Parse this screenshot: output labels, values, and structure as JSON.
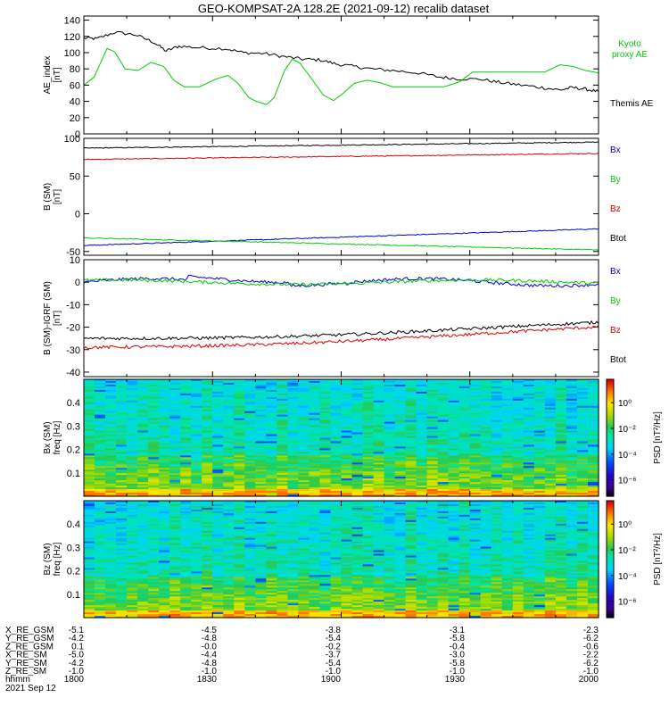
{
  "title": "GEO-KOMPSAT-2A 128.2E (2021-09-12) recalib dataset",
  "x_ticks": [
    "1800",
    "1830",
    "1900",
    "1930",
    "2000"
  ],
  "colors": {
    "black": "#000000",
    "green": "#00cc00",
    "red": "#dd0000",
    "blue": "#0000cc"
  },
  "chart_data": [
    {
      "type": "line",
      "name": "ae_panel",
      "ylabel": "AE_index",
      "yunit": "[nT]",
      "ylim": [
        0,
        145
      ],
      "yticks": [
        0,
        20,
        40,
        60,
        80,
        100,
        120,
        140
      ],
      "x": [
        18.0,
        18.25,
        18.5,
        18.75,
        19.0,
        19.25,
        19.5,
        19.75,
        20.0
      ],
      "series": [
        {
          "name": "Themis AE",
          "color": "black",
          "points": [
            [
              18.0,
              118
            ],
            [
              18.05,
              117
            ],
            [
              18.12,
              125
            ],
            [
              18.2,
              122
            ],
            [
              18.27,
              113
            ],
            [
              18.32,
              102
            ],
            [
              18.37,
              108
            ],
            [
              18.45,
              106
            ],
            [
              18.55,
              105
            ],
            [
              18.62,
              100
            ],
            [
              18.7,
              99
            ],
            [
              18.78,
              95
            ],
            [
              18.85,
              92
            ],
            [
              18.92,
              91
            ],
            [
              18.98,
              86
            ],
            [
              19.05,
              83
            ],
            [
              19.12,
              80
            ],
            [
              19.2,
              78
            ],
            [
              19.3,
              75
            ],
            [
              19.38,
              70
            ],
            [
              19.45,
              68
            ],
            [
              19.55,
              67
            ],
            [
              19.62,
              63
            ],
            [
              19.7,
              60
            ],
            [
              19.78,
              57
            ],
            [
              19.85,
              54
            ],
            [
              19.9,
              57
            ],
            [
              19.95,
              55
            ],
            [
              20.0,
              52
            ]
          ]
        },
        {
          "name": "Kyoto proxy AE",
          "color": "green",
          "points": [
            [
              18.0,
              60
            ],
            [
              18.04,
              70
            ],
            [
              18.09,
              105
            ],
            [
              18.12,
              101
            ],
            [
              18.16,
              80
            ],
            [
              18.21,
              78
            ],
            [
              18.26,
              88
            ],
            [
              18.31,
              83
            ],
            [
              18.35,
              66
            ],
            [
              18.39,
              58
            ],
            [
              18.45,
              58
            ],
            [
              18.51,
              67
            ],
            [
              18.56,
              72
            ],
            [
              18.6,
              62
            ],
            [
              18.64,
              45
            ],
            [
              18.67,
              40
            ],
            [
              18.71,
              36
            ],
            [
              18.74,
              45
            ],
            [
              18.78,
              78
            ],
            [
              18.81,
              92
            ],
            [
              18.84,
              87
            ],
            [
              18.88,
              70
            ],
            [
              18.93,
              48
            ],
            [
              18.97,
              41
            ],
            [
              19.0,
              48
            ],
            [
              19.05,
              62
            ],
            [
              19.1,
              66
            ],
            [
              19.15,
              63
            ],
            [
              19.2,
              58
            ],
            [
              19.3,
              58
            ],
            [
              19.4,
              58
            ],
            [
              19.46,
              64
            ],
            [
              19.51,
              76
            ],
            [
              19.7,
              76
            ],
            [
              19.79,
              76
            ],
            [
              19.85,
              85
            ],
            [
              19.9,
              83
            ],
            [
              19.95,
              78
            ],
            [
              20.0,
              75
            ]
          ]
        }
      ]
    },
    {
      "type": "line",
      "name": "b_sm_panel",
      "ylabel": "B (SM)",
      "yunit": "[nT]",
      "ylim": [
        -55,
        100
      ],
      "yticks": [
        -50,
        0,
        50,
        100
      ],
      "series": [
        {
          "name": "Btot",
          "color": "black",
          "start": 87,
          "end": 95
        },
        {
          "name": "Bz",
          "color": "red",
          "start": 72,
          "end": 80
        },
        {
          "name": "Bx",
          "color": "blue",
          "start": -42,
          "end": -20
        },
        {
          "name": "By",
          "color": "green",
          "start": -32,
          "end": -48
        }
      ]
    },
    {
      "type": "line",
      "name": "b_sm_igrf_panel",
      "ylabel": "B (SM)-IGRF (SM)",
      "yunit": "[nT]",
      "ylim": [
        -42,
        10
      ],
      "yticks": [
        -40,
        -30,
        -20,
        -10,
        0,
        10
      ],
      "series": [
        {
          "name": "Bx",
          "color": "blue",
          "start": 0,
          "end": 0
        },
        {
          "name": "By",
          "color": "green",
          "start": 0,
          "end": 0
        },
        {
          "name": "Btot",
          "color": "black",
          "start": -25,
          "end": -19
        },
        {
          "name": "Bz",
          "color": "red",
          "start": -29,
          "end": -21
        }
      ]
    },
    {
      "type": "heatmap",
      "name": "bx_spectrogram",
      "ylabel": "Bx (SM)",
      "yunit": "freq [Hz]",
      "ylim": [
        0,
        0.5
      ],
      "yticks": [
        0.1,
        0.2,
        0.3,
        0.4
      ],
      "colorbar_label": "PSD [nT²/Hz]",
      "colorbar_ticks": [
        "10⁰",
        "10⁻²",
        "10⁻⁴",
        "10⁻⁶"
      ]
    },
    {
      "type": "heatmap",
      "name": "bz_spectrogram",
      "ylabel": "Bz (SM)",
      "yunit": "freq [Hz]",
      "ylim": [
        0,
        0.5
      ],
      "yticks": [
        0.1,
        0.2,
        0.3,
        0.4
      ],
      "colorbar_label": "PSD [nT²/Hz]",
      "colorbar_ticks": [
        "10⁰",
        "10⁻²",
        "10⁻⁴",
        "10⁻⁶"
      ]
    }
  ],
  "ephemeris": {
    "rows": [
      {
        "label": "X_RE_GSM",
        "values": [
          "-5.1",
          "-4.5",
          "-3.8",
          "-3.1",
          "-2.3"
        ]
      },
      {
        "label": "Y_RE_GSM",
        "values": [
          "-4.2",
          "-4.8",
          "-5.4",
          "-5.8",
          "-6.2"
        ]
      },
      {
        "label": "Z_RE_GSM",
        "values": [
          "0.1",
          "-0.0",
          "-0.2",
          "-0.4",
          "-0.6"
        ]
      },
      {
        "label": "X_RE_SM",
        "values": [
          "-5.0",
          "-4.4",
          "-3.7",
          "-3.0",
          "-2.2"
        ]
      },
      {
        "label": "Y_RE_SM",
        "values": [
          "-4.2",
          "-4.8",
          "-5.4",
          "-5.8",
          "-6.2"
        ]
      },
      {
        "label": "Z_RE_SM",
        "values": [
          "-1.0",
          "-1.0",
          "-1.0",
          "-1.0",
          "-1.0"
        ]
      }
    ],
    "time_label": "hhmm",
    "times": [
      "1800",
      "1830",
      "1900",
      "1930",
      "2000"
    ],
    "date": "2021 Sep 12"
  }
}
